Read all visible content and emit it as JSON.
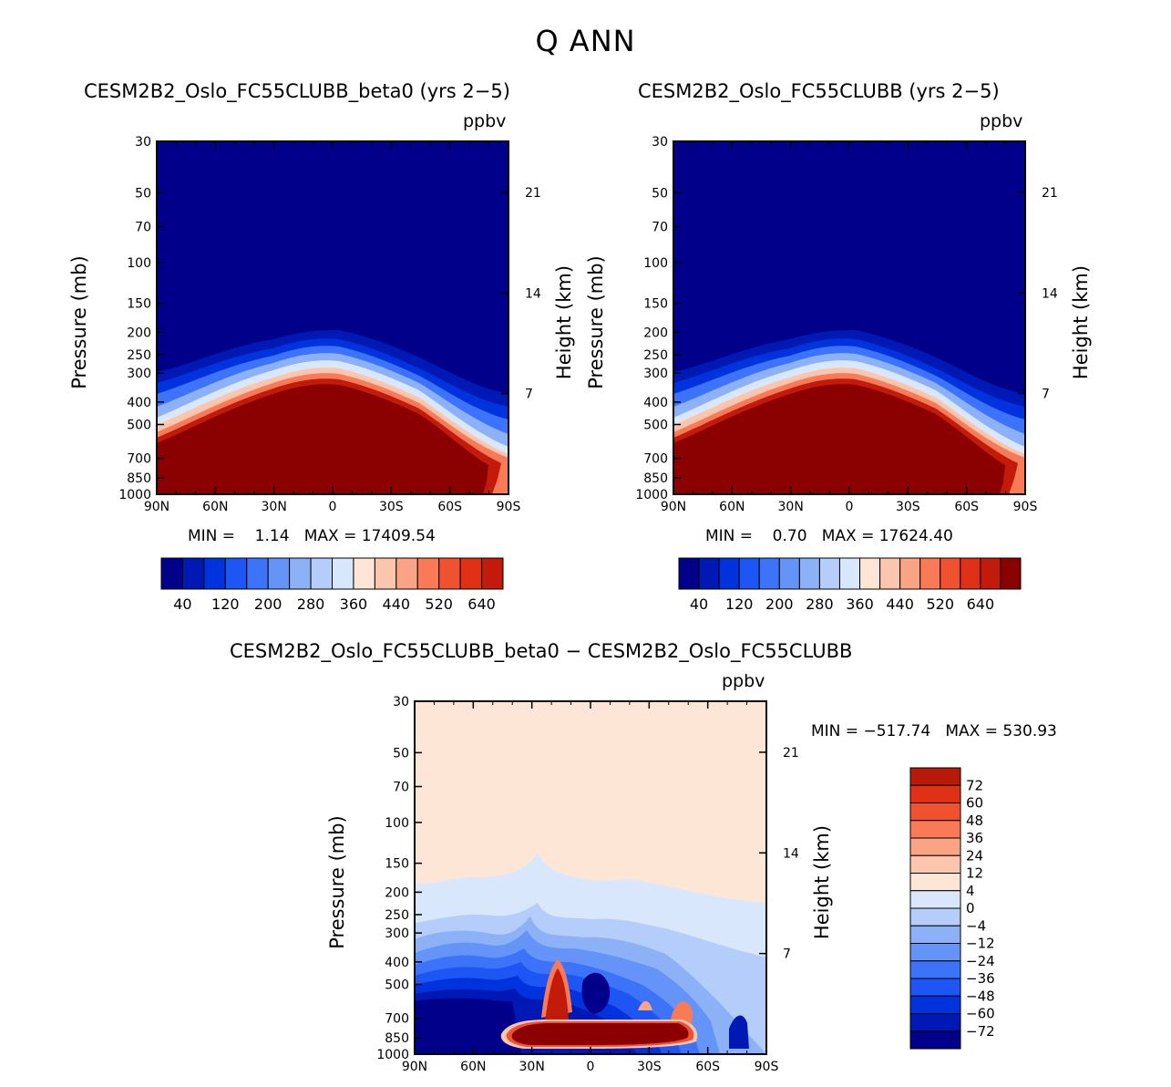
{
  "main_title": "Q  ANN",
  "colors": {
    "abs_levels": [
      "#00008a",
      "#0019b5",
      "#0033dd",
      "#1e55f5",
      "#3d73f8",
      "#6494f7",
      "#8cb1f7",
      "#b5cdfa",
      "#d9e7fc",
      "#fee6d6",
      "#fcc6ae",
      "#fba385",
      "#f87a56",
      "#f0522f",
      "#e03117",
      "#c21a0b",
      "#8b0000"
    ],
    "diff_levels": [
      "#00008a",
      "#0019b5",
      "#0033dd",
      "#1e55f5",
      "#3d73f8",
      "#6494f7",
      "#8cb1f7",
      "#b5cdfa",
      "#d9e7fc",
      "#fee6d6",
      "#fcc6ae",
      "#fba385",
      "#f87a56",
      "#f0522f",
      "#e03117",
      "#b81a0a",
      "#8b0000"
    ]
  },
  "panel1": {
    "title": "CESM2B2_Oslo_FC55CLUBB_beta0 (yrs 2−5)",
    "units": "ppbv",
    "ylabel": "Pressure (mb)",
    "y2label": "Height (km)",
    "stats": "MIN =    1.14   MAX = 17409.54",
    "colorbar_labels": [
      "40",
      "120",
      "200",
      "280",
      "360",
      "440",
      "520",
      "640"
    ]
  },
  "panel2": {
    "title": "CESM2B2_Oslo_FC55CLUBB (yrs 2−5)",
    "units": "ppbv",
    "ylabel": "Pressure (mb)",
    "y2label": "Height (km)",
    "stats": "MIN =    0.70   MAX = 17624.40",
    "colorbar_labels": [
      "40",
      "120",
      "200",
      "280",
      "360",
      "440",
      "520",
      "640"
    ]
  },
  "panel3": {
    "title": "CESM2B2_Oslo_FC55CLUBB_beta0 − CESM2B2_Oslo_FC55CLUBB",
    "units": "ppbv",
    "ylabel": "Pressure (mb)",
    "y2label": "Height (km)",
    "stats": "MIN = −517.74   MAX = 530.93",
    "colorbar_labels": [
      "72",
      "60",
      "48",
      "36",
      "24",
      "12",
      "4",
      "0",
      "−4",
      "−12",
      "−24",
      "−36",
      "−48",
      "−60",
      "−72"
    ]
  },
  "chart_data": [
    {
      "type": "heatmap",
      "title": "CESM2B2_Oslo_FC55CLUBB_beta0 (yrs 2−5)",
      "variable": "Q ANN",
      "units": "ppbv",
      "x": [
        "90N",
        "60N",
        "30N",
        "0",
        "30S",
        "60S",
        "90S"
      ],
      "y_pressure_mb": [
        30,
        50,
        70,
        100,
        150,
        200,
        250,
        300,
        400,
        500,
        700,
        850,
        1000
      ],
      "y2_height_km": [
        7,
        14,
        21
      ],
      "ylim": [
        1000,
        30
      ],
      "contour_levels": [
        40,
        80,
        120,
        160,
        200,
        240,
        280,
        320,
        360,
        400,
        440,
        480,
        520,
        580,
        640
      ],
      "min": 1.14,
      "max": 17409.54,
      "xlabel": "",
      "ylabel": "Pressure (mb)",
      "y2label": "Height (km)"
    },
    {
      "type": "heatmap",
      "title": "CESM2B2_Oslo_FC55CLUBB (yrs 2−5)",
      "variable": "Q ANN",
      "units": "ppbv",
      "x": [
        "90N",
        "60N",
        "30N",
        "0",
        "30S",
        "60S",
        "90S"
      ],
      "y_pressure_mb": [
        30,
        50,
        70,
        100,
        150,
        200,
        250,
        300,
        400,
        500,
        700,
        850,
        1000
      ],
      "y2_height_km": [
        7,
        14,
        21
      ],
      "ylim": [
        1000,
        30
      ],
      "contour_levels": [
        40,
        80,
        120,
        160,
        200,
        240,
        280,
        320,
        360,
        400,
        440,
        480,
        520,
        580,
        640
      ],
      "min": 0.7,
      "max": 17624.4,
      "xlabel": "",
      "ylabel": "Pressure (mb)",
      "y2label": "Height (km)"
    },
    {
      "type": "heatmap",
      "title": "CESM2B2_Oslo_FC55CLUBB_beta0 − CESM2B2_Oslo_FC55CLUBB",
      "variable": "Q ANN difference",
      "units": "ppbv",
      "x": [
        "90N",
        "60N",
        "30N",
        "0",
        "30S",
        "60S",
        "90S"
      ],
      "y_pressure_mb": [
        30,
        50,
        70,
        100,
        150,
        200,
        250,
        300,
        400,
        500,
        700,
        850,
        1000
      ],
      "y2_height_km": [
        7,
        14,
        21
      ],
      "ylim": [
        1000,
        30
      ],
      "contour_levels": [
        -72,
        -60,
        -48,
        -36,
        -24,
        -12,
        -4,
        0,
        4,
        12,
        24,
        36,
        48,
        60,
        72
      ],
      "min": -517.74,
      "max": 530.93,
      "xlabel": "",
      "ylabel": "Pressure (mb)",
      "y2label": "Height (km)"
    }
  ]
}
